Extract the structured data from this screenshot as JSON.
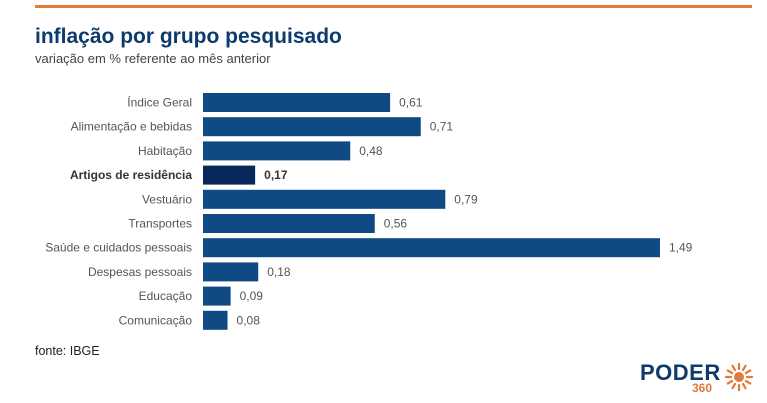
{
  "header": {
    "title": "inflação por grupo pesquisado",
    "subtitle": "variação em % referente ao mês anterior"
  },
  "footer": {
    "source": "fonte: IBGE",
    "brand": "PODER",
    "brand_number": "360"
  },
  "colors": {
    "bar": "#104a85",
    "bar_highlight": "#08275a",
    "accent": "#e07b3c"
  },
  "chart_data": {
    "type": "bar",
    "orientation": "horizontal",
    "categories": [
      "Índice Geral",
      "Alimentação e bebidas",
      "Habitação",
      "Artigos de residência",
      "Vestuário",
      "Transportes",
      "Saúde e cuidados pessoais",
      "Despesas pessoais",
      "Educação",
      "Comunicação"
    ],
    "values": [
      0.61,
      0.71,
      0.48,
      0.17,
      0.79,
      0.56,
      1.49,
      0.18,
      0.09,
      0.08
    ],
    "value_labels": [
      "0,61",
      "0,71",
      "0,48",
      "0,17",
      "0,79",
      "0,56",
      "1,49",
      "0,18",
      "0,09",
      "0,08"
    ],
    "highlight_index": 3,
    "xlim": [
      0,
      1.49
    ],
    "grid": false,
    "legend": "none"
  }
}
